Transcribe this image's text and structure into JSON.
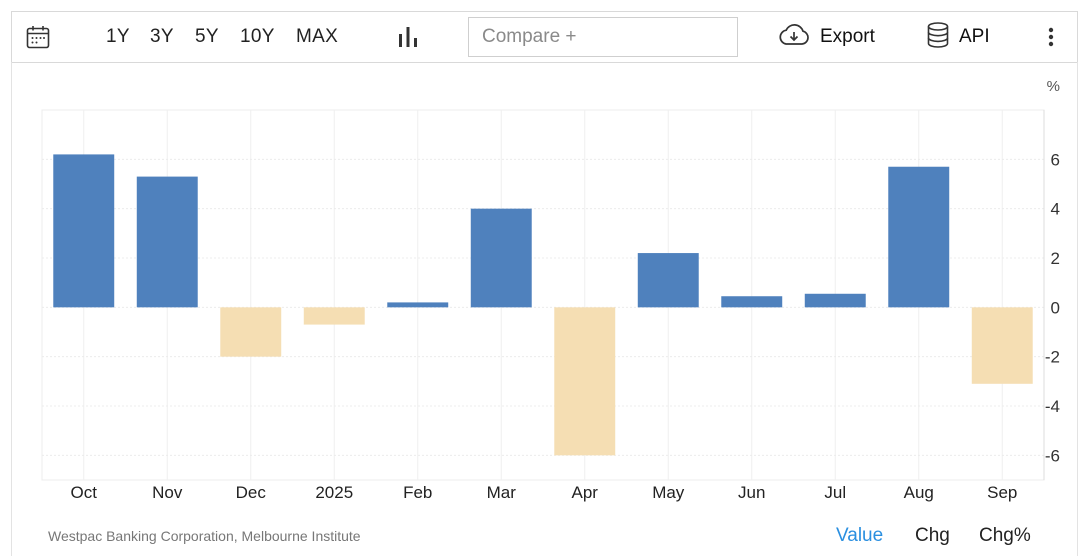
{
  "toolbar": {
    "ranges": [
      "1Y",
      "3Y",
      "5Y",
      "10Y",
      "MAX"
    ],
    "compare_placeholder": "Compare +",
    "export_label": "Export",
    "api_label": "API"
  },
  "source": "Westpac Banking Corporation, Melbourne Institute",
  "view_tabs": [
    "Value",
    "Chg",
    "Chg%"
  ],
  "colors": {
    "positive": "#4f81bd",
    "negative": "#f5deb3",
    "active_tab": "#2a8fe0"
  },
  "chart_data": {
    "type": "bar",
    "unit": "%",
    "categories": [
      "Oct",
      "Nov",
      "Dec",
      "2025",
      "Feb",
      "Mar",
      "Apr",
      "May",
      "Jun",
      "Jul",
      "Aug",
      "Sep"
    ],
    "values": [
      6.2,
      5.3,
      -2.0,
      -0.7,
      0.2,
      4.0,
      -6.0,
      2.2,
      0.45,
      0.55,
      5.7,
      -3.1
    ],
    "y_ticks": [
      6,
      4,
      2,
      0,
      -2,
      -4,
      -6
    ],
    "ylim": [
      -7,
      8
    ],
    "y_axis_side": "right",
    "grid": true
  }
}
